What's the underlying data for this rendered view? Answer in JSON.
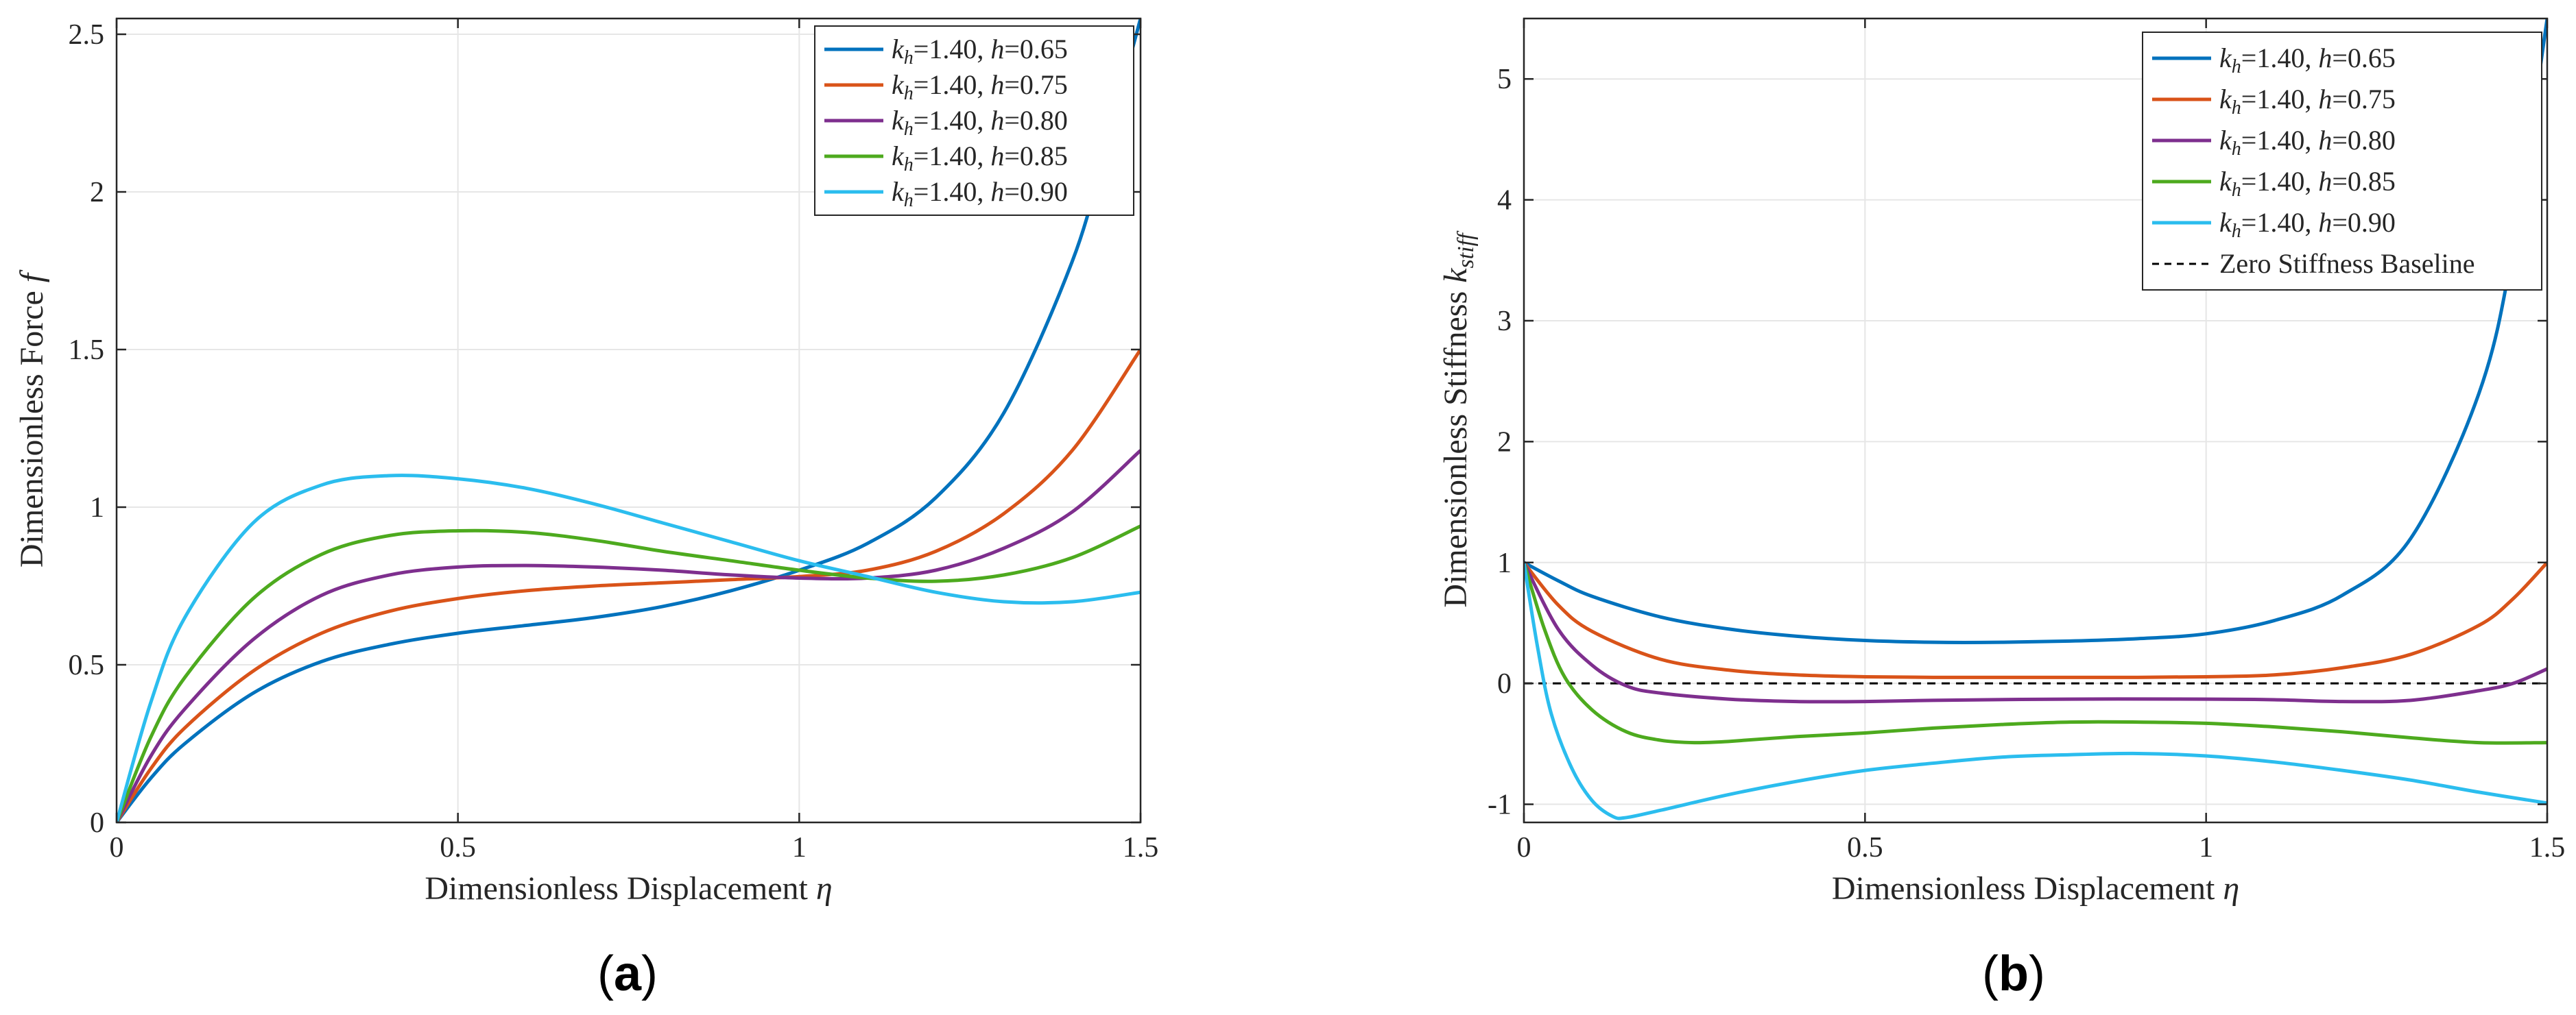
{
  "chart_data": [
    {
      "type": "line",
      "panel_label": "a",
      "xlabel": "Dimensionless Displacement η",
      "ylabel": "Dimensionless Force f",
      "xlim": [
        0,
        1.5
      ],
      "ylim": [
        0,
        2.55
      ],
      "xticks": [
        0,
        0.5,
        1,
        1.5
      ],
      "xtick_labels": [
        "0",
        "0.5",
        "1",
        "1.5"
      ],
      "yticks": [
        0,
        0.5,
        1,
        1.5,
        2,
        2.5
      ],
      "ytick_labels": [
        "0",
        "0.5",
        "1",
        "1.5",
        "2",
        "2.5"
      ],
      "grid": true,
      "legend_position": "top-right",
      "series": [
        {
          "name": "kh=1.40, h=0.65",
          "legend_k": "k",
          "legend_sub": "h",
          "legend_rest": "=1.40, ",
          "legend_h": "h",
          "legend_val": "=0.65",
          "color": "#0072BD",
          "points": [
            [
              0,
              0
            ],
            [
              0.05,
              0.14
            ],
            [
              0.1,
              0.25
            ],
            [
              0.2,
              0.41
            ],
            [
              0.3,
              0.51
            ],
            [
              0.4,
              0.565
            ],
            [
              0.5,
              0.6
            ],
            [
              0.6,
              0.625
            ],
            [
              0.7,
              0.65
            ],
            [
              0.8,
              0.685
            ],
            [
              0.9,
              0.735
            ],
            [
              1.0,
              0.8
            ],
            [
              1.1,
              0.885
            ],
            [
              1.2,
              1.03
            ],
            [
              1.3,
              1.3
            ],
            [
              1.4,
              1.78
            ],
            [
              1.45,
              2.15
            ],
            [
              1.5,
              2.55
            ]
          ]
        },
        {
          "name": "kh=1.40, h=0.75",
          "legend_k": "k",
          "legend_sub": "h",
          "legend_rest": "=1.40, ",
          "legend_h": "h",
          "legend_val": "=0.75",
          "color": "#D95319",
          "points": [
            [
              0,
              0
            ],
            [
              0.05,
              0.17
            ],
            [
              0.1,
              0.3
            ],
            [
              0.2,
              0.48
            ],
            [
              0.3,
              0.6
            ],
            [
              0.4,
              0.67
            ],
            [
              0.5,
              0.71
            ],
            [
              0.6,
              0.735
            ],
            [
              0.7,
              0.75
            ],
            [
              0.8,
              0.76
            ],
            [
              0.9,
              0.77
            ],
            [
              1.0,
              0.78
            ],
            [
              1.1,
              0.8
            ],
            [
              1.2,
              0.86
            ],
            [
              1.3,
              0.98
            ],
            [
              1.4,
              1.18
            ],
            [
              1.5,
              1.5
            ]
          ]
        },
        {
          "name": "kh=1.40, h=0.80",
          "legend_k": "k",
          "legend_sub": "h",
          "legend_rest": "=1.40, ",
          "legend_h": "h",
          "legend_val": "=0.80",
          "color": "#7E2F8E",
          "points": [
            [
              0,
              0
            ],
            [
              0.05,
              0.21
            ],
            [
              0.1,
              0.36
            ],
            [
              0.2,
              0.58
            ],
            [
              0.3,
              0.72
            ],
            [
              0.4,
              0.785
            ],
            [
              0.5,
              0.81
            ],
            [
              0.6,
              0.815
            ],
            [
              0.7,
              0.81
            ],
            [
              0.8,
              0.8
            ],
            [
              0.9,
              0.785
            ],
            [
              1.0,
              0.775
            ],
            [
              1.1,
              0.775
            ],
            [
              1.2,
              0.8
            ],
            [
              1.3,
              0.87
            ],
            [
              1.4,
              0.985
            ],
            [
              1.5,
              1.18
            ]
          ]
        },
        {
          "name": "kh=1.40, h=0.85",
          "legend_k": "k",
          "legend_sub": "h",
          "legend_rest": "=1.40, ",
          "legend_h": "h",
          "legend_val": "=0.85",
          "color": "#4DAA1E",
          "points": [
            [
              0,
              0
            ],
            [
              0.05,
              0.27
            ],
            [
              0.1,
              0.46
            ],
            [
              0.2,
              0.71
            ],
            [
              0.3,
              0.85
            ],
            [
              0.4,
              0.91
            ],
            [
              0.5,
              0.925
            ],
            [
              0.6,
              0.92
            ],
            [
              0.7,
              0.895
            ],
            [
              0.8,
              0.86
            ],
            [
              0.9,
              0.83
            ],
            [
              1.0,
              0.8
            ],
            [
              1.1,
              0.775
            ],
            [
              1.2,
              0.765
            ],
            [
              1.3,
              0.785
            ],
            [
              1.4,
              0.84
            ],
            [
              1.5,
              0.94
            ]
          ]
        },
        {
          "name": "kh=1.40, h=0.90",
          "legend_k": "k",
          "legend_sub": "h",
          "legend_rest": "=1.40, ",
          "legend_h": "h",
          "legend_val": "=0.90",
          "color": "#2BBDEE",
          "points": [
            [
              0,
              0
            ],
            [
              0.05,
              0.38
            ],
            [
              0.1,
              0.65
            ],
            [
              0.2,
              0.95
            ],
            [
              0.3,
              1.07
            ],
            [
              0.4,
              1.1
            ],
            [
              0.5,
              1.09
            ],
            [
              0.6,
              1.06
            ],
            [
              0.7,
              1.01
            ],
            [
              0.8,
              0.95
            ],
            [
              0.9,
              0.89
            ],
            [
              1.0,
              0.83
            ],
            [
              1.1,
              0.78
            ],
            [
              1.2,
              0.73
            ],
            [
              1.3,
              0.7
            ],
            [
              1.4,
              0.7
            ],
            [
              1.5,
              0.73
            ]
          ]
        }
      ]
    },
    {
      "type": "line",
      "panel_label": "b",
      "xlabel": "Dimensionless Displacement η",
      "ylabel": "Dimensionless Stiffness k_stiff",
      "xlim": [
        0,
        1.5
      ],
      "ylim": [
        -1.15,
        5.5
      ],
      "xticks": [
        0,
        0.5,
        1,
        1.5
      ],
      "xtick_labels": [
        "0",
        "0.5",
        "1",
        "1.5"
      ],
      "yticks": [
        -1,
        0,
        1,
        2,
        3,
        4,
        5
      ],
      "ytick_labels": [
        "-1",
        "0",
        "1",
        "2",
        "3",
        "4",
        "5"
      ],
      "grid": true,
      "legend_position": "top-right",
      "baseline": {
        "name": "Zero Stiffness Baseline",
        "y": 0,
        "color": "#000000",
        "style": "dashed"
      },
      "series": [
        {
          "name": "kh=1.40, h=0.65",
          "legend_k": "k",
          "legend_sub": "h",
          "legend_rest": "=1.40, ",
          "legend_h": "h",
          "legend_val": "=0.65",
          "color": "#0072BD",
          "points": [
            [
              0,
              1.0
            ],
            [
              0.05,
              0.85
            ],
            [
              0.1,
              0.72
            ],
            [
              0.2,
              0.55
            ],
            [
              0.3,
              0.45
            ],
            [
              0.4,
              0.39
            ],
            [
              0.5,
              0.355
            ],
            [
              0.6,
              0.34
            ],
            [
              0.7,
              0.34
            ],
            [
              0.8,
              0.35
            ],
            [
              0.9,
              0.37
            ],
            [
              1.0,
              0.41
            ],
            [
              1.1,
              0.52
            ],
            [
              1.2,
              0.73
            ],
            [
              1.3,
              1.2
            ],
            [
              1.4,
              2.4
            ],
            [
              1.45,
              3.6
            ],
            [
              1.5,
              5.5
            ]
          ]
        },
        {
          "name": "kh=1.40, h=0.75",
          "legend_k": "k",
          "legend_sub": "h",
          "legend_rest": "=1.40, ",
          "legend_h": "h",
          "legend_val": "=0.75",
          "color": "#D95319",
          "points": [
            [
              0,
              1.0
            ],
            [
              0.05,
              0.65
            ],
            [
              0.1,
              0.43
            ],
            [
              0.2,
              0.2
            ],
            [
              0.3,
              0.11
            ],
            [
              0.4,
              0.07
            ],
            [
              0.5,
              0.055
            ],
            [
              0.6,
              0.05
            ],
            [
              0.7,
              0.05
            ],
            [
              0.8,
              0.05
            ],
            [
              0.9,
              0.05
            ],
            [
              1.0,
              0.055
            ],
            [
              1.1,
              0.07
            ],
            [
              1.2,
              0.13
            ],
            [
              1.3,
              0.24
            ],
            [
              1.4,
              0.48
            ],
            [
              1.45,
              0.7
            ],
            [
              1.5,
              1.0
            ]
          ]
        },
        {
          "name": "kh=1.40, h=0.80",
          "legend_k": "k",
          "legend_sub": "h",
          "legend_rest": "=1.40, ",
          "legend_h": "h",
          "legend_val": "=0.80",
          "color": "#7E2F8E",
          "points": [
            [
              0,
              1.0
            ],
            [
              0.05,
              0.45
            ],
            [
              0.1,
              0.15
            ],
            [
              0.15,
              -0.02
            ],
            [
              0.2,
              -0.08
            ],
            [
              0.3,
              -0.13
            ],
            [
              0.4,
              -0.15
            ],
            [
              0.5,
              -0.15
            ],
            [
              0.6,
              -0.14
            ],
            [
              0.8,
              -0.13
            ],
            [
              1.0,
              -0.13
            ],
            [
              1.1,
              -0.135
            ],
            [
              1.2,
              -0.15
            ],
            [
              1.3,
              -0.14
            ],
            [
              1.4,
              -0.06
            ],
            [
              1.45,
              0.0
            ],
            [
              1.5,
              0.12
            ]
          ]
        },
        {
          "name": "kh=1.40, h=0.85",
          "legend_k": "k",
          "legend_sub": "h",
          "legend_rest": "=1.40, ",
          "legend_h": "h",
          "legend_val": "=0.85",
          "color": "#4DAA1E",
          "points": [
            [
              0,
              1.0
            ],
            [
              0.03,
              0.45
            ],
            [
              0.06,
              0.05
            ],
            [
              0.1,
              -0.22
            ],
            [
              0.15,
              -0.4
            ],
            [
              0.2,
              -0.47
            ],
            [
              0.25,
              -0.49
            ],
            [
              0.3,
              -0.48
            ],
            [
              0.4,
              -0.44
            ],
            [
              0.5,
              -0.41
            ],
            [
              0.6,
              -0.37
            ],
            [
              0.7,
              -0.34
            ],
            [
              0.8,
              -0.32
            ],
            [
              0.9,
              -0.32
            ],
            [
              1.0,
              -0.33
            ],
            [
              1.1,
              -0.36
            ],
            [
              1.2,
              -0.4
            ],
            [
              1.3,
              -0.45
            ],
            [
              1.4,
              -0.49
            ],
            [
              1.5,
              -0.49
            ]
          ]
        },
        {
          "name": "kh=1.40, h=0.90",
          "legend_k": "k",
          "legend_sub": "h",
          "legend_rest": "=1.40, ",
          "legend_h": "h",
          "legend_val": "=0.90",
          "color": "#2BBDEE",
          "points": [
            [
              0,
              1.0
            ],
            [
              0.02,
              0.3
            ],
            [
              0.04,
              -0.25
            ],
            [
              0.07,
              -0.7
            ],
            [
              0.1,
              -0.97
            ],
            [
              0.13,
              -1.1
            ],
            [
              0.15,
              -1.11
            ],
            [
              0.2,
              -1.05
            ],
            [
              0.3,
              -0.92
            ],
            [
              0.4,
              -0.81
            ],
            [
              0.5,
              -0.72
            ],
            [
              0.6,
              -0.66
            ],
            [
              0.7,
              -0.61
            ],
            [
              0.8,
              -0.59
            ],
            [
              0.9,
              -0.58
            ],
            [
              1.0,
              -0.6
            ],
            [
              1.1,
              -0.65
            ],
            [
              1.2,
              -0.72
            ],
            [
              1.3,
              -0.8
            ],
            [
              1.4,
              -0.9
            ],
            [
              1.5,
              -0.99
            ]
          ]
        }
      ]
    }
  ]
}
